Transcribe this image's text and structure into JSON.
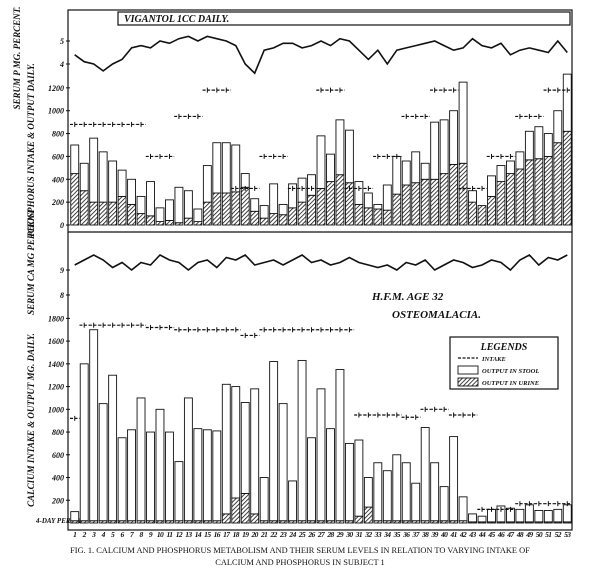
{
  "chart_data": [
    {
      "type": "line",
      "title": "VIGANTOL 1CC DAILY.",
      "y_label": "SERUM P MG. PERCENT.",
      "color": "#111111",
      "values": [
        4.4,
        4.1,
        4.0,
        3.7,
        4.0,
        4.2,
        4.7,
        4.8,
        4.7,
        5.0,
        4.9,
        5.1,
        5.2,
        5.0,
        5.2,
        5.1,
        5.0,
        4.8,
        4.0,
        3.6,
        4.6,
        4.7,
        4.9,
        4.9,
        4.7,
        4.8,
        5.0,
        4.8,
        5.1,
        5.0,
        4.6,
        4.2,
        4.6,
        4.0,
        4.6,
        4.7,
        4.8,
        4.9,
        5.0,
        4.8,
        4.6,
        4.7,
        5.1,
        4.8,
        4.7,
        4.9,
        4.4,
        4.6,
        4.7,
        4.6,
        4.5,
        5.0,
        4.5
      ],
      "ylim": [
        3,
        6
      ],
      "yticks": [
        4,
        5
      ]
    },
    {
      "type": "bar",
      "y_label": "PHOSPHORUS INTAKE & OUTPUT DAILY.",
      "ylim": [
        0,
        1400
      ],
      "yticks": [
        0,
        200,
        400,
        600,
        800,
        1000,
        1200
      ],
      "series": [
        {
          "type": "line",
          "style": "dashed-plus",
          "color": "#111111",
          "values": [
            880,
            880,
            880,
            880,
            880,
            880,
            880,
            880,
            600,
            600,
            600,
            950,
            950,
            950,
            1180,
            1180,
            1180,
            320,
            320,
            320,
            600,
            600,
            600,
            320,
            320,
            320,
            1180,
            1180,
            1180,
            320,
            320,
            320,
            600,
            600,
            600,
            950,
            950,
            950,
            1180,
            1180,
            1180,
            320,
            320,
            320,
            600,
            600,
            600,
            950,
            950,
            950,
            1180,
            1180,
            1180
          ]
        },
        {
          "type": "bar",
          "color": "#ffffff",
          "values": [
            250,
            240,
            560,
            440,
            360,
            230,
            220,
            150,
            300,
            120,
            180,
            310,
            240,
            110,
            320,
            440,
            440,
            410,
            120,
            110,
            110,
            260,
            90,
            210,
            210,
            180,
            460,
            240,
            480,
            460,
            200,
            130,
            40,
            220,
            330,
            210,
            270,
            140,
            500,
            470,
            470,
            710,
            100,
            0,
            180,
            140,
            110,
            150,
            250,
            280,
            200,
            280,
            500
          ]
        },
        {
          "type": "bar",
          "color": "#111111",
          "pattern": "hatched",
          "values": [
            450,
            300,
            200,
            200,
            200,
            250,
            180,
            100,
            80,
            30,
            40,
            20,
            60,
            30,
            200,
            280,
            280,
            290,
            330,
            120,
            60,
            100,
            90,
            150,
            200,
            260,
            320,
            380,
            440,
            370,
            180,
            150,
            140,
            130,
            270,
            350,
            370,
            400,
            400,
            450,
            530,
            540,
            200,
            170,
            250,
            380,
            450,
            490,
            570,
            580,
            600,
            720,
            820
          ]
        }
      ]
    },
    {
      "type": "line",
      "y_label": "SERUM CA MG PERCENT",
      "color": "#111111",
      "values": [
        9.2,
        9.4,
        9.6,
        9.4,
        9.1,
        9.3,
        9.0,
        9.3,
        9.2,
        9.6,
        9.4,
        9.3,
        9.0,
        9.3,
        9.4,
        9.1,
        9.5,
        9.4,
        9.6,
        9.2,
        9.3,
        9.4,
        9.2,
        9.4,
        9.6,
        9.3,
        9.4,
        9.2,
        9.3,
        9.5,
        9.3,
        9.2,
        9.1,
        9.2,
        9.0,
        9.3,
        9.2,
        9.4,
        9.0,
        9.2,
        9.4,
        9.3,
        9.1,
        9.2,
        9.4,
        9.3,
        9.0,
        9.4,
        9.6,
        9.2,
        9.5,
        9.4,
        9.6
      ],
      "ylim": [
        7.8,
        10.4
      ],
      "yticks": [
        8,
        9
      ],
      "annotation": [
        "H.F.M. AGE 32",
        "OSTEOMALACIA."
      ]
    },
    {
      "type": "bar",
      "y_label": "CALCIUM INTAKE & OUTPUT MG. DAILY.",
      "x_label": "4-DAY PERIOD",
      "legend_title": "LEGENDS",
      "categories": [
        1,
        2,
        3,
        4,
        5,
        6,
        7,
        8,
        9,
        10,
        11,
        12,
        13,
        14,
        15,
        16,
        17,
        18,
        19,
        20,
        21,
        22,
        23,
        24,
        25,
        26,
        27,
        28,
        29,
        30,
        31,
        32,
        33,
        34,
        35,
        36,
        37,
        38,
        39,
        40,
        41,
        42,
        43,
        44,
        45,
        46,
        47,
        48,
        49,
        50,
        51,
        52,
        53
      ],
      "ylim": [
        0,
        1900
      ],
      "yticks": [
        200,
        400,
        600,
        800,
        1000,
        1200,
        1400,
        1600,
        1800
      ],
      "series": [
        {
          "name": "INTAKE",
          "type": "line",
          "style": "dashed-plus",
          "color": "#111111",
          "values": [
            920,
            1740,
            1740,
            1740,
            1740,
            1740,
            1740,
            1740,
            1720,
            1720,
            1720,
            1700,
            1700,
            1700,
            1700,
            1700,
            1700,
            1700,
            1650,
            1650,
            1700,
            1700,
            1700,
            1700,
            1700,
            1700,
            1700,
            1700,
            1700,
            1700,
            950,
            950,
            950,
            950,
            950,
            930,
            930,
            1000,
            1000,
            1000,
            950,
            950,
            950,
            120,
            120,
            120,
            120,
            170,
            170,
            170,
            170,
            170,
            170
          ]
        },
        {
          "name": "OUTPUT IN STOOL",
          "type": "bar",
          "color": "#ffffff",
          "values": [
            80,
            1380,
            1680,
            1030,
            1280,
            730,
            800,
            1080,
            780,
            980,
            780,
            520,
            1080,
            810,
            800,
            790,
            1140,
            980,
            800,
            1100,
            380,
            1400,
            1030,
            350,
            1410,
            730,
            1160,
            810,
            1330,
            680,
            670,
            260,
            510,
            440,
            580,
            510,
            330,
            820,
            510,
            300,
            740,
            210,
            70,
            50,
            110,
            140,
            120,
            110,
            150,
            100,
            100,
            110,
            150
          ]
        },
        {
          "name": "OUTPUT IN URINE",
          "type": "bar",
          "color": "#111111",
          "pattern": "hatched",
          "values": [
            20,
            20,
            20,
            20,
            20,
            20,
            20,
            20,
            20,
            20,
            20,
            20,
            20,
            20,
            20,
            20,
            80,
            220,
            260,
            80,
            20,
            20,
            20,
            20,
            20,
            20,
            20,
            20,
            20,
            20,
            60,
            140,
            20,
            20,
            20,
            20,
            20,
            20,
            20,
            20,
            20,
            20,
            10,
            10,
            10,
            10,
            10,
            10,
            10,
            10,
            10,
            10,
            10
          ]
        }
      ]
    }
  ],
  "caption": [
    "FIG. 1. CALCIUM AND PHOSPHORUS METABOLISM AND THEIR SERUM LEVELS IN RELATION TO VARYING INTAKE OF",
    "CALCIUM AND PHOSPHORUS IN SUBJECT 1"
  ]
}
